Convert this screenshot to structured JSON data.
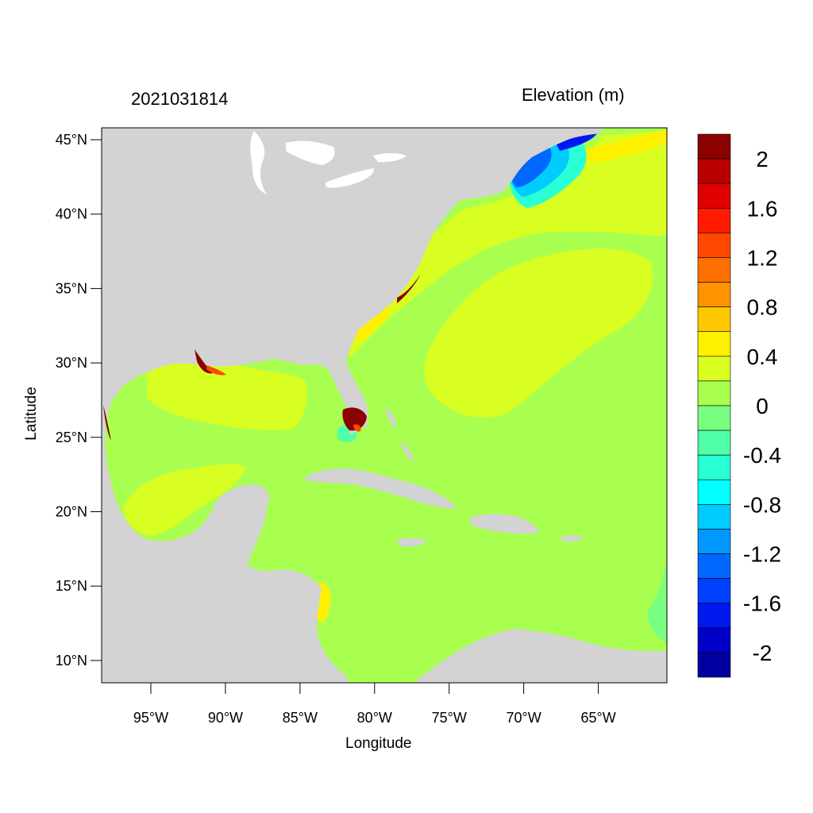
{
  "header": {
    "datestamp": "2021031814",
    "title": "Elevation (m)"
  },
  "axes": {
    "xlabel": "Longitude",
    "ylabel": "Latitude",
    "lon_range": [
      -98.3,
      -60.4
    ],
    "lat_range": [
      8.5,
      45.8
    ],
    "x_ticks": [
      {
        "value": -95,
        "label": "95°W"
      },
      {
        "value": -90,
        "label": "90°W"
      },
      {
        "value": -85,
        "label": "85°W"
      },
      {
        "value": -80,
        "label": "80°W"
      },
      {
        "value": -75,
        "label": "75°W"
      },
      {
        "value": -70,
        "label": "70°W"
      },
      {
        "value": -65,
        "label": "65°W"
      }
    ],
    "y_ticks": [
      {
        "value": 45,
        "label": "45°N"
      },
      {
        "value": 40,
        "label": "40°N"
      },
      {
        "value": 35,
        "label": "35°N"
      },
      {
        "value": 30,
        "label": "30°N"
      },
      {
        "value": 25,
        "label": "25°N"
      },
      {
        "value": 20,
        "label": "20°N"
      },
      {
        "value": 15,
        "label": "15°N"
      },
      {
        "value": 10,
        "label": "10°N"
      }
    ]
  },
  "colorbar": {
    "colors": [
      "#8b0000",
      "#b80000",
      "#e00000",
      "#ff1a00",
      "#ff4800",
      "#ff6f00",
      "#ff9400",
      "#ffc800",
      "#fff000",
      "#d8fe22",
      "#a8ff50",
      "#78ff80",
      "#50ffa8",
      "#28ffd4",
      "#00ffff",
      "#00ccff",
      "#0098ff",
      "#0068ff",
      "#0040ff",
      "#0018f0",
      "#0000c8",
      "#0000a0"
    ],
    "labels": [
      "2",
      "1.6",
      "1.2",
      "0.8",
      "0.4",
      "0",
      "-0.4",
      "-0.8",
      "-1.2",
      "-1.6",
      "-2"
    ]
  },
  "colors": {
    "land": "#d3d3d3",
    "ocean_base": "#a8ff50",
    "high": "#d8fe22",
    "very_high": "#8b0000",
    "low": "#0040ff"
  }
}
